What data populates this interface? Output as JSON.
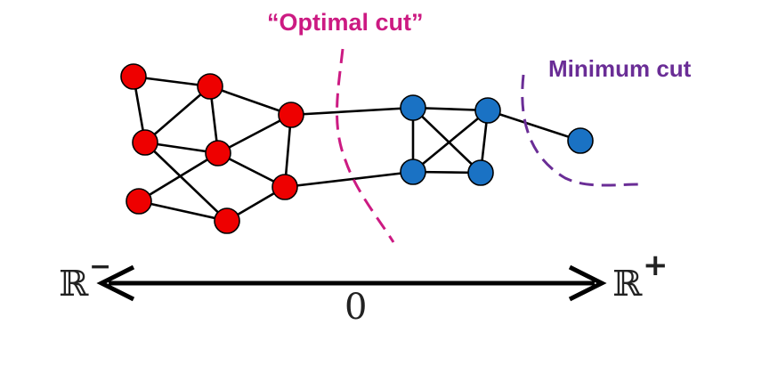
{
  "labels": {
    "optimal_cut": "“Optimal cut”",
    "minimum_cut": "Minimum cut",
    "r_minus_symbol": "ℝ",
    "r_minus_sup": "−",
    "r_plus_symbol": "ℝ",
    "r_plus_sup": "+",
    "zero": "0"
  },
  "colors": {
    "red_nodes": "#ee0000",
    "blue_nodes": "#1a72c4",
    "optimal_cut": "#cc1a82",
    "minimum_cut": "#6a2d96",
    "edges": "#000000"
  }
}
